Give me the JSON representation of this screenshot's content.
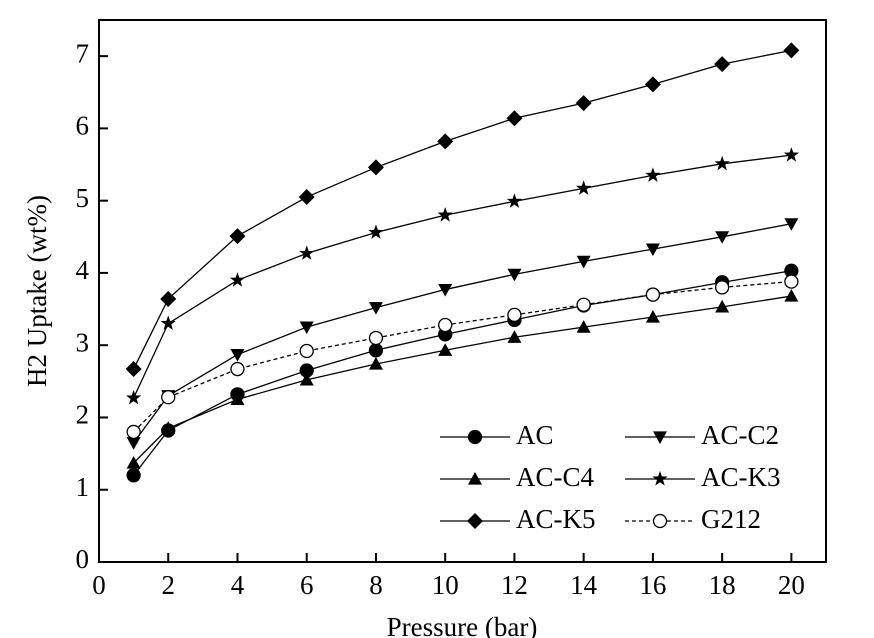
{
  "chart_data": {
    "type": "line",
    "x_label": "Pressure (bar)",
    "y_label": "H2 Uptake (wt%)",
    "x": [
      1,
      2,
      4,
      6,
      8,
      10,
      12,
      14,
      16,
      18,
      20
    ],
    "xlim": [
      0,
      21
    ],
    "xticks": [
      0,
      2,
      4,
      6,
      8,
      10,
      12,
      14,
      16,
      18,
      20
    ],
    "ylim": [
      0,
      7.5
    ],
    "yticks": [
      0,
      1,
      2,
      3,
      4,
      5,
      6,
      7
    ],
    "grid": false,
    "legend": "lower right",
    "series": [
      {
        "name": "AC",
        "color": "#000000",
        "marker": "circle",
        "dash": false,
        "values": [
          1.2,
          1.82,
          2.32,
          2.65,
          2.93,
          3.15,
          3.35,
          3.55,
          3.7,
          3.87,
          4.03
        ]
      },
      {
        "name": "AC-C2",
        "color": "#000000",
        "marker": "triangle-down",
        "dash": false,
        "values": [
          1.65,
          2.3,
          2.87,
          3.25,
          3.52,
          3.77,
          3.98,
          4.16,
          4.33,
          4.5,
          4.68
        ]
      },
      {
        "name": "AC-C4",
        "color": "#000000",
        "marker": "triangle-up",
        "dash": false,
        "values": [
          1.37,
          1.85,
          2.25,
          2.52,
          2.74,
          2.93,
          3.11,
          3.25,
          3.39,
          3.53,
          3.68
        ]
      },
      {
        "name": "AC-K3",
        "color": "#000000",
        "marker": "star",
        "dash": false,
        "values": [
          2.27,
          3.3,
          3.9,
          4.27,
          4.56,
          4.8,
          4.99,
          5.17,
          5.35,
          5.51,
          5.63
        ]
      },
      {
        "name": "AC-K5",
        "color": "#000000",
        "marker": "diamond",
        "dash": false,
        "values": [
          2.67,
          3.64,
          4.51,
          5.05,
          5.46,
          5.82,
          6.14,
          6.35,
          6.61,
          6.89,
          7.08
        ]
      },
      {
        "name": "G212",
        "color": "#000000",
        "marker": "open-circle",
        "dash": true,
        "values": [
          1.8,
          2.28,
          2.67,
          2.92,
          3.1,
          3.28,
          3.42,
          3.56,
          3.7,
          3.8,
          3.88
        ]
      }
    ]
  }
}
